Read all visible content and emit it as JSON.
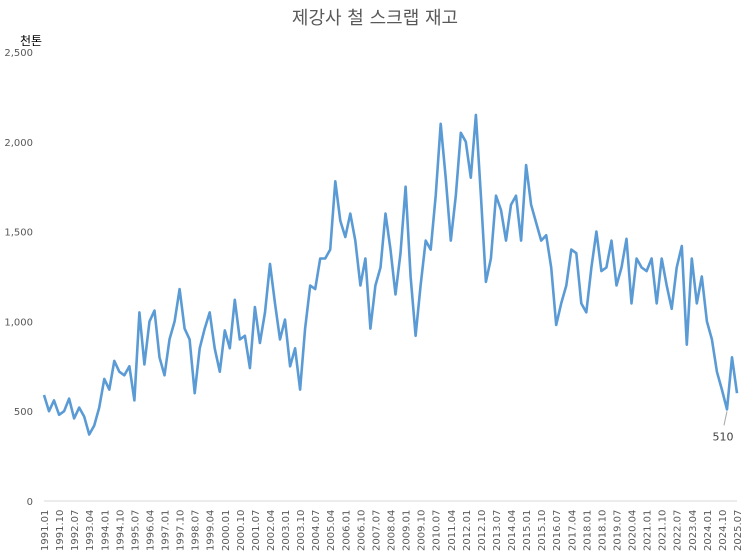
{
  "chart_data": {
    "type": "line",
    "title": "제강사 철 스크랩 재고",
    "ylabel": "천톤",
    "xlabel": "",
    "ylim": [
      0,
      2500
    ],
    "yticks": [
      "0",
      "500",
      "1,000",
      "1,500",
      "2,000",
      "2,500"
    ],
    "ytick_values": [
      0,
      500,
      1000,
      1500,
      2000,
      2500
    ],
    "grid": false,
    "legend": "none",
    "line_color": "#5B9BD5",
    "xticks": [
      "1991.01",
      "1991.10",
      "1992.07",
      "1993.04",
      "1994.01",
      "1994.10",
      "1995.07",
      "1996.04",
      "1997.01",
      "1997.10",
      "1998.07",
      "1999.04",
      "2000.01",
      "2000.10",
      "2001.07",
      "2002.04",
      "2003.01",
      "2003.10",
      "2004.07",
      "2005.04",
      "2006.01",
      "2006.10",
      "2007.07",
      "2008.04",
      "2009.01",
      "2009.10",
      "2010.07",
      "2011.04",
      "2012.01",
      "2012.10",
      "2013.07",
      "2014.04",
      "2015.01",
      "2015.10",
      "2016.07",
      "2017.04",
      "2018.01",
      "2018.10",
      "2019.07",
      "2020.04",
      "2021.01",
      "2021.10",
      "2022.07",
      "2023.04",
      "2024.01",
      "2024.10",
      "2025.07"
    ],
    "x_start": "1991.01",
    "x_step_months": 3,
    "values": [
      590,
      500,
      560,
      480,
      500,
      570,
      460,
      520,
      470,
      370,
      420,
      520,
      680,
      620,
      780,
      720,
      700,
      750,
      560,
      1050,
      760,
      1000,
      1060,
      800,
      700,
      900,
      1000,
      1180,
      960,
      900,
      600,
      850,
      960,
      1050,
      850,
      720,
      950,
      850,
      1120,
      900,
      920,
      740,
      1080,
      880,
      1050,
      1320,
      1100,
      900,
      1010,
      750,
      850,
      620,
      960,
      1200,
      1180,
      1350,
      1350,
      1400,
      1780,
      1560,
      1470,
      1600,
      1450,
      1200,
      1350,
      960,
      1200,
      1300,
      1600,
      1400,
      1150,
      1380,
      1750,
      1250,
      920,
      1200,
      1450,
      1400,
      1700,
      2100,
      1800,
      1450,
      1700,
      2050,
      2000,
      1800,
      2150,
      1700,
      1220,
      1350,
      1700,
      1620,
      1450,
      1650,
      1700,
      1450,
      1870,
      1650,
      1550,
      1450,
      1480,
      1300,
      980,
      1100,
      1200,
      1400,
      1380,
      1100,
      1050,
      1300,
      1500,
      1280,
      1300,
      1450,
      1200,
      1300,
      1460,
      1100,
      1350,
      1300,
      1280,
      1350,
      1100,
      1350,
      1200,
      1070,
      1300,
      1420,
      870,
      1350,
      1100,
      1250,
      1000,
      900,
      720,
      620,
      510,
      800,
      600
    ],
    "annotation": {
      "text": "510",
      "at": "2025.01",
      "value": 510
    }
  }
}
